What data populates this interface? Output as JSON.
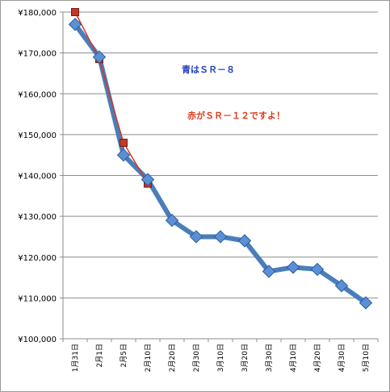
{
  "chart_data": {
    "type": "line",
    "categories": [
      "1月31日",
      "2月1日",
      "2月5日",
      "2月10日",
      "2月20日",
      "2月30日",
      "3月10日",
      "3月20日",
      "3月30日",
      "4月10日",
      "4月20日",
      "4月30日",
      "5月10日"
    ],
    "series": [
      {
        "color": "#4a7ebb",
        "values": [
          177000,
          169000,
          145000,
          139000,
          129000,
          125000,
          125000,
          124000,
          116500,
          117500,
          117000,
          113000,
          108800
        ]
      },
      {
        "color": "#c0392b",
        "values": [
          180000,
          168500,
          148000,
          138000,
          null,
          null,
          null,
          null,
          null,
          null,
          null,
          null,
          null
        ]
      }
    ],
    "yticks": [
      "¥100,000",
      "¥110,000",
      "¥120,000",
      "¥130,000",
      "¥140,000",
      "¥150,000",
      "¥160,000",
      "¥170,000",
      "¥180,000"
    ],
    "ylim": [
      100000,
      180000
    ],
    "ystep": 10000,
    "grid": true,
    "annotations": [
      {
        "text": "青はＳＲ－８",
        "color": "#1f3fbf"
      },
      {
        "text": "赤がＳＲ－１２ですよ！",
        "color": "#e03a1a"
      }
    ]
  }
}
